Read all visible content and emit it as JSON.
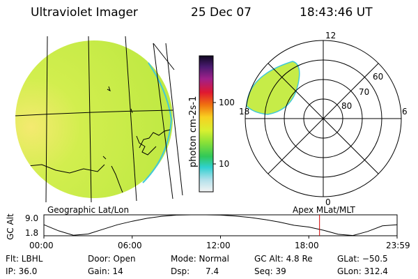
{
  "header": {
    "instrument": "Ultraviolet Imager",
    "date": "25 Dec 07",
    "time": "18:43:46 UT"
  },
  "colorbar": {
    "unit_label": "photon cm-2s-1",
    "tick_labels": [
      "100",
      "10"
    ]
  },
  "map_labels": {
    "geographic": "Geographic Lat/Lon",
    "apex": "Apex  MLat/MLT"
  },
  "chart_data": {
    "type": "line",
    "polar": {
      "mlt_labels": [
        "12",
        "18",
        "6",
        "0"
      ],
      "mlat_labels": [
        "60",
        "70",
        "80"
      ]
    },
    "gc_alt": {
      "ylabel": "GC Alt",
      "y_ticks": [
        "9.0",
        "1.8"
      ],
      "x_ticks": [
        "00:00",
        "06:00",
        "12:00",
        "18:00",
        "23:59"
      ],
      "ylim": [
        1.8,
        9.0
      ],
      "x_hours": [
        0,
        1,
        2,
        3,
        4,
        5,
        6,
        7,
        8,
        9,
        10,
        11,
        12,
        13,
        14,
        15,
        16,
        17,
        18,
        19,
        20,
        21,
        22,
        23,
        23.98
      ],
      "alt_re": [
        5.6,
        3.5,
        2.0,
        2.4,
        4.0,
        5.6,
        6.8,
        7.8,
        8.5,
        8.9,
        9.0,
        9.0,
        8.9,
        8.6,
        8.1,
        7.4,
        6.5,
        5.4,
        4.8,
        3.7,
        2.3,
        1.9,
        3.3,
        5.2,
        5.6
      ],
      "current_hour": 18.73
    }
  },
  "footer": {
    "flt": "Flt: LBHL",
    "door": "Door: Open",
    "mode": "Mode: Normal",
    "gc_alt": "GC Alt: 4.8 Re",
    "glat": "GLat: −50.5",
    "ip": "IP: 36.0",
    "gain": "Gain: 14",
    "dsp": "Dsp:      7.4",
    "seq": "Seq: 39",
    "glon": "GLon: 312.4"
  },
  "colors": {
    "cursor": "#d00000",
    "disk_fill": "#c6ec48",
    "disk_bright": "#f0e868"
  }
}
